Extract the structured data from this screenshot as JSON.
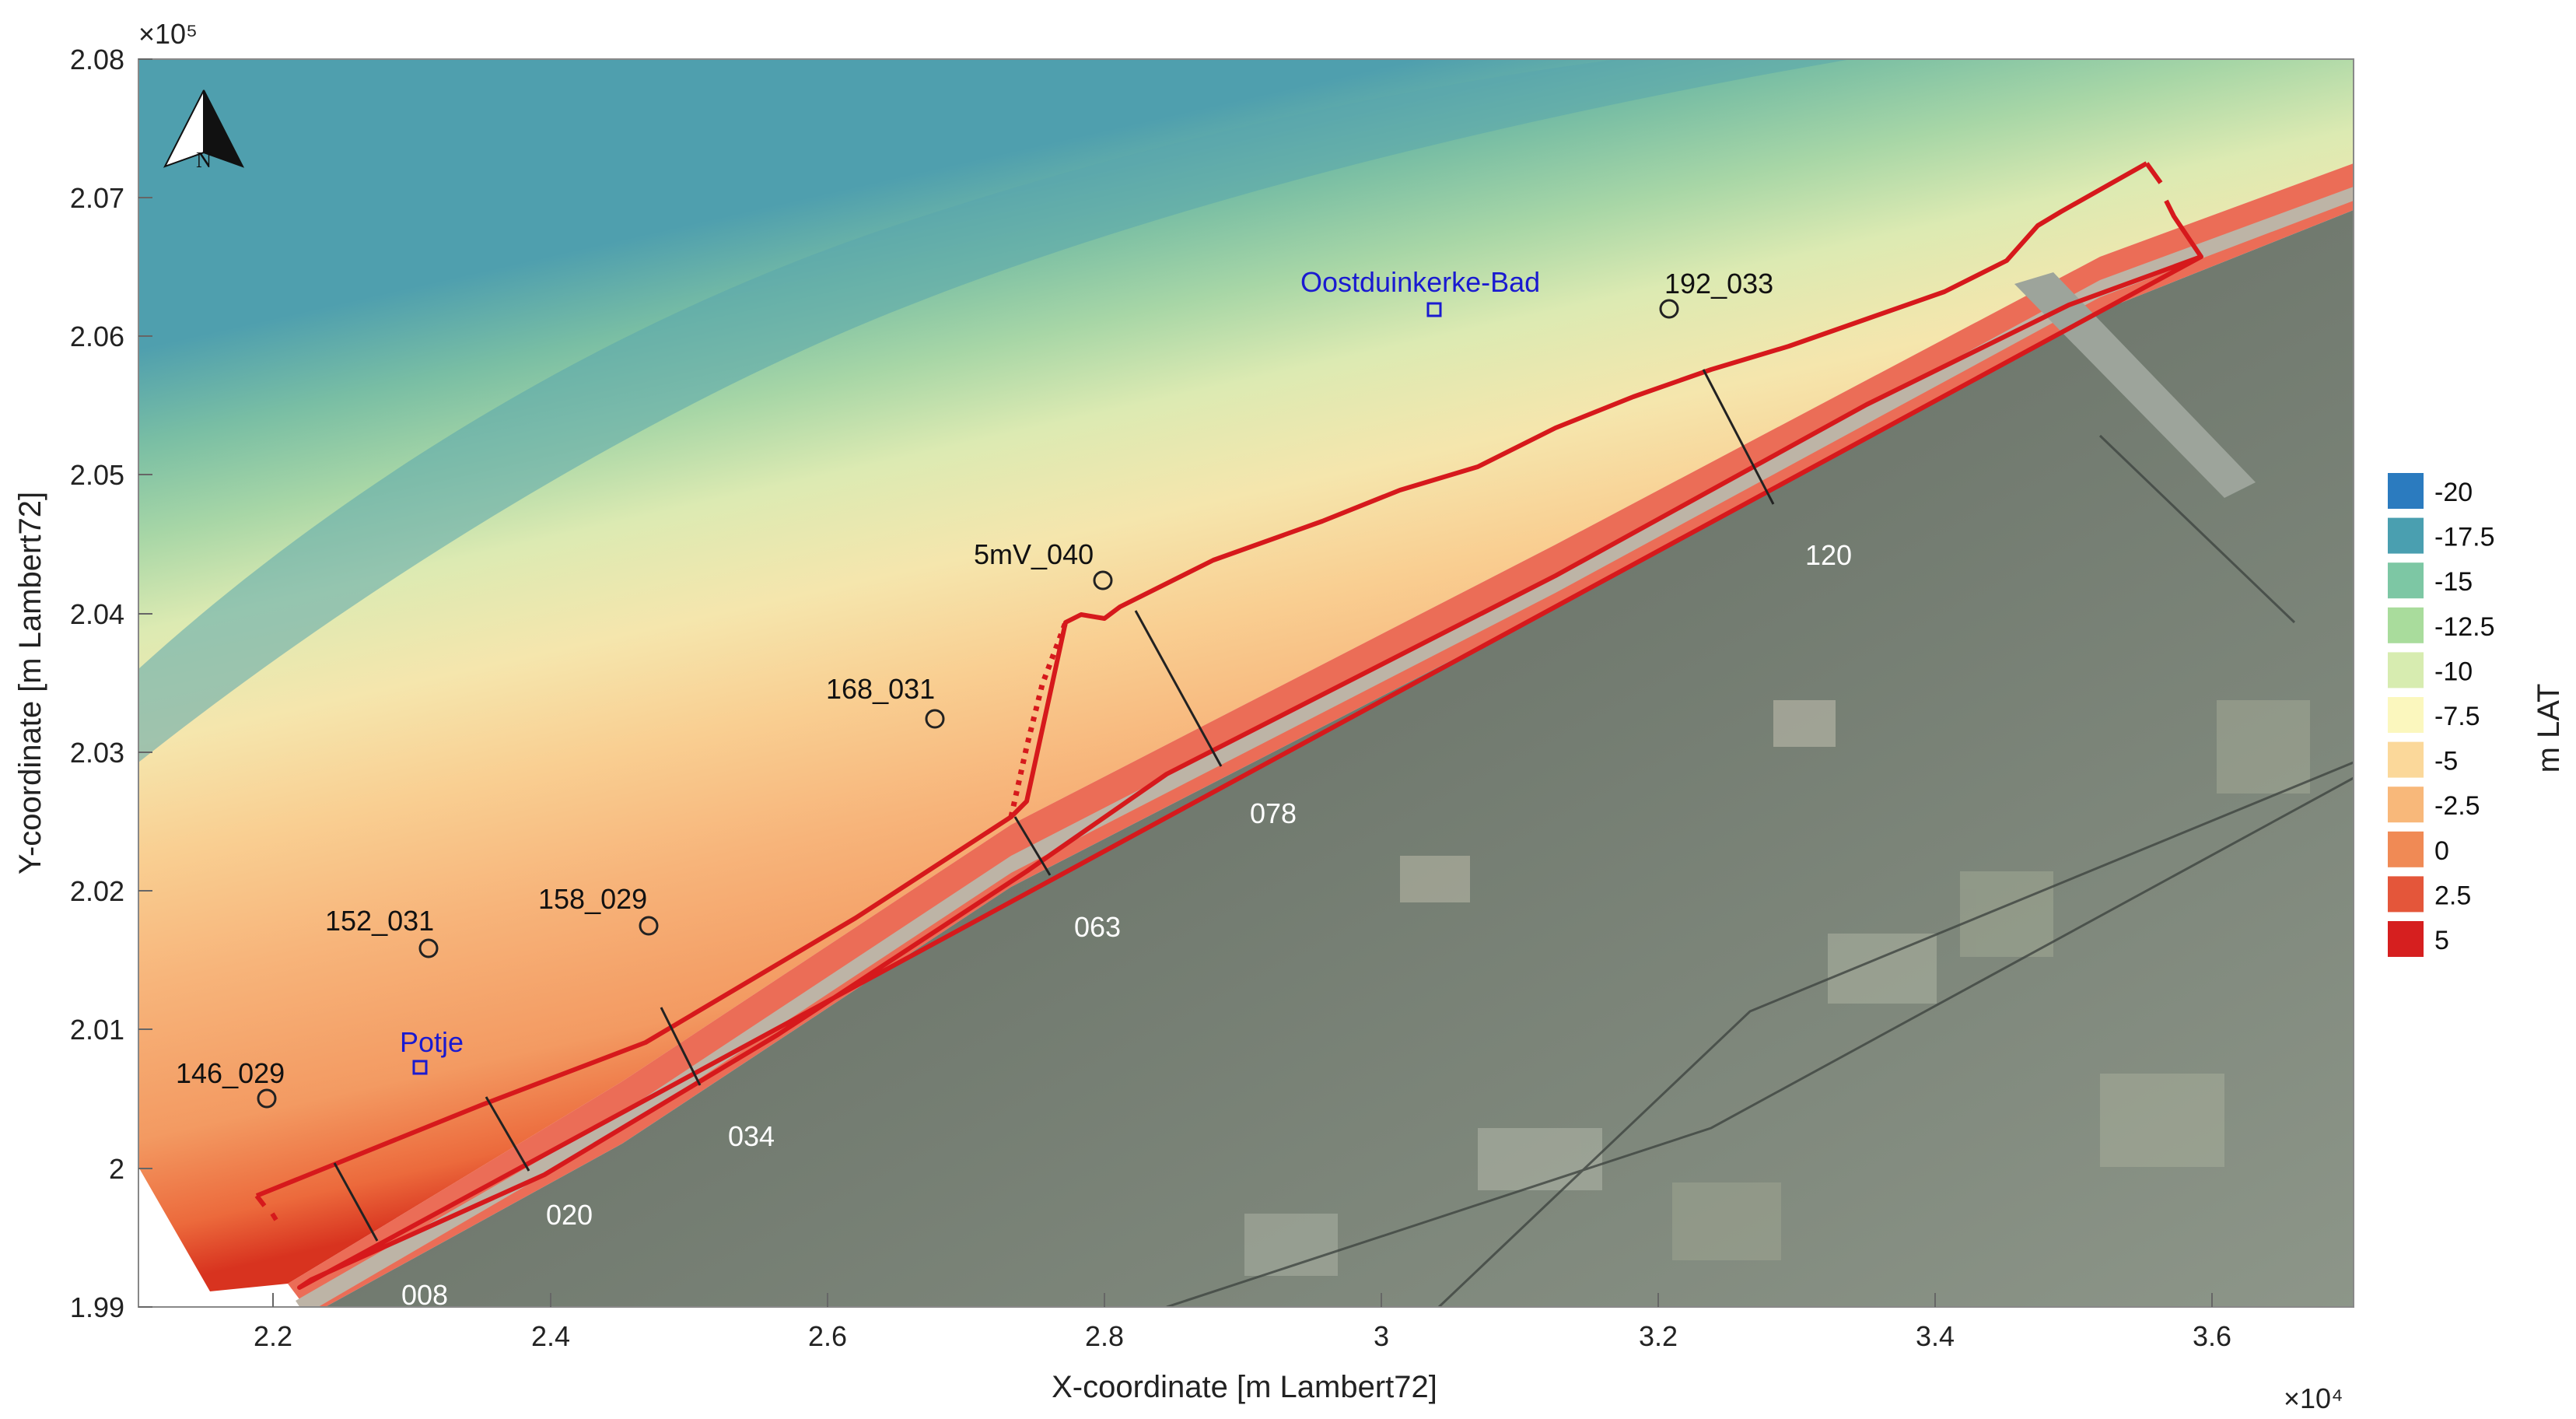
{
  "axes": {
    "x_label": "X-coordinate [m Lambert72]",
    "y_label": "Y-coordinate [m Lambert72]",
    "x_ticks": [
      "2.2",
      "2.4",
      "2.6",
      "2.8",
      "3",
      "3.2",
      "3.4",
      "3.6"
    ],
    "y_ticks": [
      "2.08",
      "2.07",
      "2.06",
      "2.05",
      "2.04",
      "2.03",
      "2.02",
      "2.01",
      "2",
      "1.99"
    ],
    "x_multiplier": "×10⁴",
    "y_multiplier": "×10⁵"
  },
  "north_arrow": {
    "label": "N"
  },
  "colorbar": {
    "title": "m LAT",
    "entries": [
      {
        "label": "-20",
        "color": "#2b7bbf"
      },
      {
        "label": "-17.5",
        "color": "#4a9fb0"
      },
      {
        "label": "-15",
        "color": "#7dc7a4"
      },
      {
        "label": "-12.5",
        "color": "#a9dc9c"
      },
      {
        "label": "-10",
        "color": "#d7ecb0"
      },
      {
        "label": "-7.5",
        "color": "#fbf7be"
      },
      {
        "label": "-5",
        "color": "#fbd89a"
      },
      {
        "label": "-2.5",
        "color": "#f8b87a"
      },
      {
        "label": "0",
        "color": "#f08a55"
      },
      {
        "label": "2.5",
        "color": "#e4563a"
      },
      {
        "label": "5",
        "color": "#d61f1f"
      }
    ]
  },
  "stations": [
    {
      "name": "146_029"
    },
    {
      "name": "152_031"
    },
    {
      "name": "158_029"
    },
    {
      "name": "168_031"
    },
    {
      "name": "5mV_040"
    },
    {
      "name": "192_033"
    }
  ],
  "places": [
    {
      "name": "Potje"
    },
    {
      "name": "Oostduinkerke-Bad"
    }
  ],
  "profiles": [
    {
      "name": "008"
    },
    {
      "name": "020"
    },
    {
      "name": "034"
    },
    {
      "name": "063"
    },
    {
      "name": "078"
    },
    {
      "name": "120"
    }
  ]
}
